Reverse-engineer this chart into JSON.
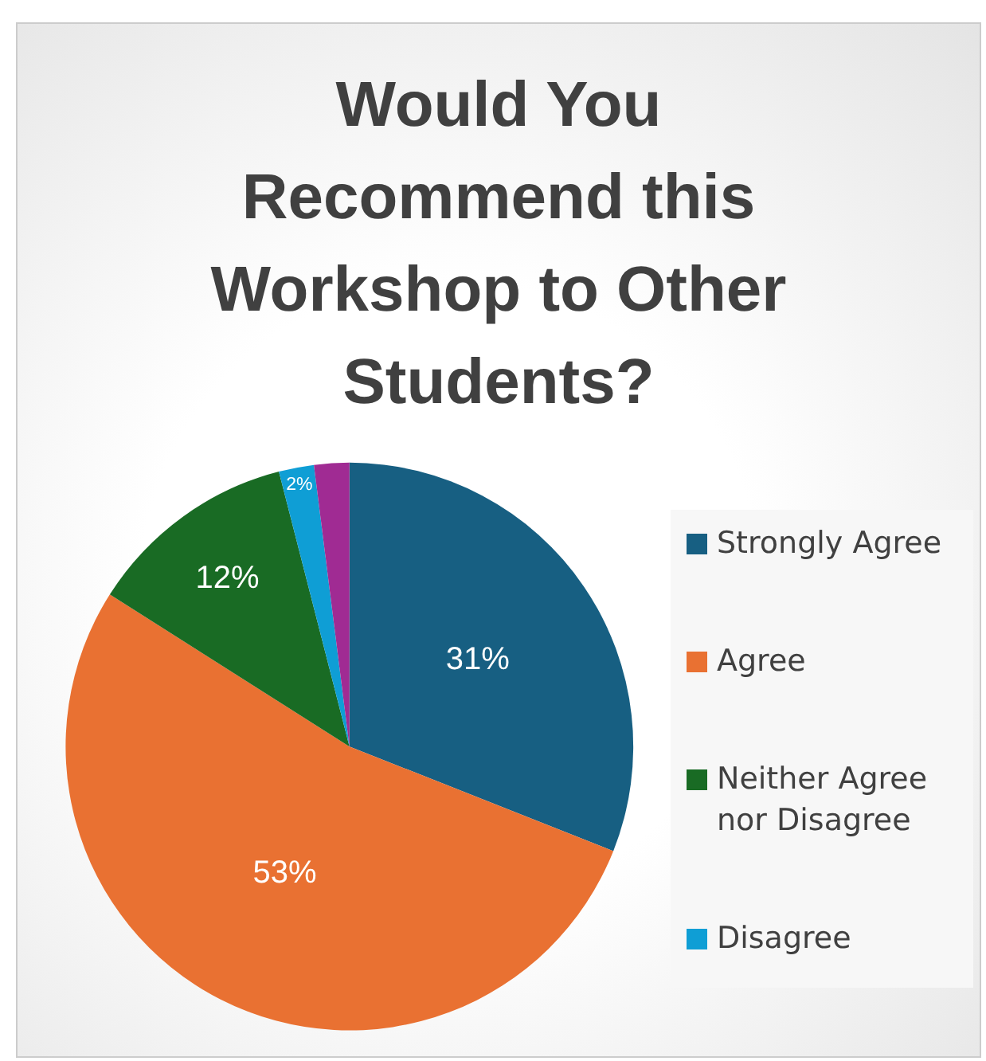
{
  "chart_data": {
    "type": "pie",
    "title": "Would You Recommend this Workshop to Other Students?",
    "categories": [
      "Strongly Agree",
      "Agree",
      "Neither Agree nor Disagree",
      "Disagree",
      null
    ],
    "values": [
      31,
      53,
      12,
      2,
      2
    ],
    "colors": [
      "#175f82",
      "#e97132",
      "#196b24",
      "#0f9ed5",
      "#a02b93"
    ],
    "value_labels": [
      "31%",
      "53%",
      "12%",
      "2%",
      null
    ],
    "legend": "right"
  }
}
